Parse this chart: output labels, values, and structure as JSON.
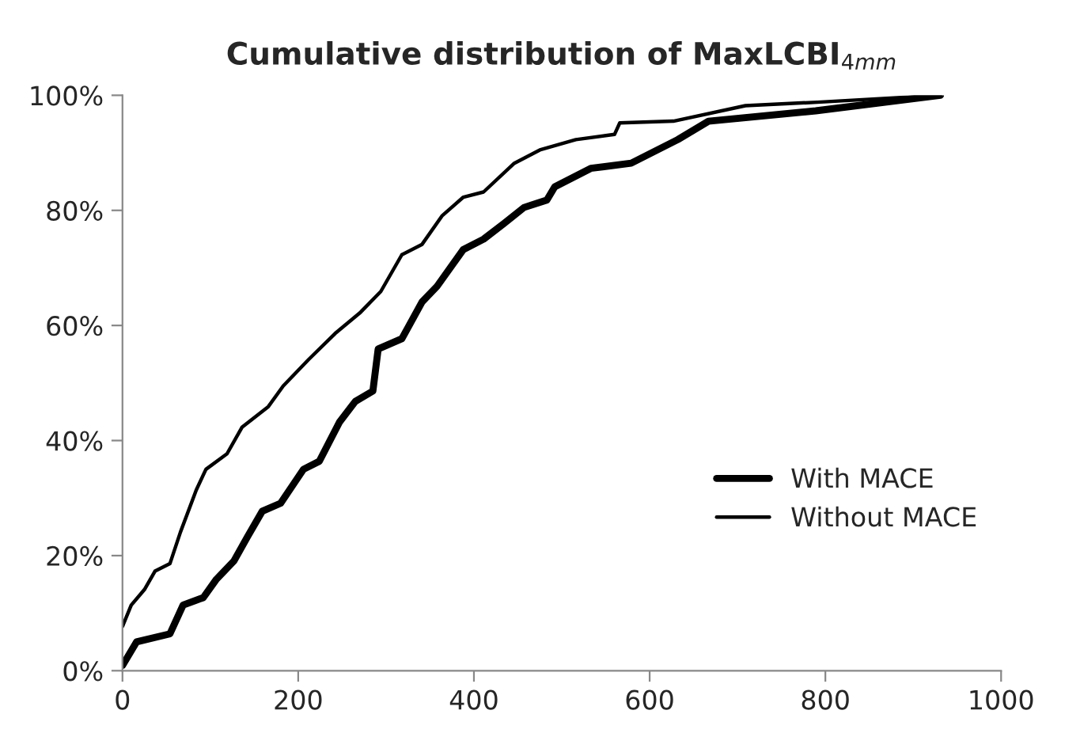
{
  "chart_data": {
    "type": "line",
    "title": "Cumulative distribution of MaxLCBI$_{4mm}$",
    "xlim": [
      0,
      1000
    ],
    "xticks": [
      0,
      200,
      400,
      600,
      800,
      1000
    ],
    "ylim": [
      0,
      100
    ],
    "yticks": [
      {
        "value": 0,
        "label": "0%"
      },
      {
        "value": 20,
        "label": "20%"
      },
      {
        "value": 40,
        "label": "40%"
      },
      {
        "value": 60,
        "label": "60%"
      },
      {
        "value": 80,
        "label": "80%"
      },
      {
        "value": 100,
        "label": "100%"
      }
    ],
    "grid": false,
    "legend": "bottom right",
    "marker": "none",
    "line_style": "solid",
    "series": [
      {
        "name": "With MACE",
        "color": "#000000",
        "x": [
          0,
          16,
          54,
          69,
          92,
          107,
          127,
          142,
          159,
          180,
          206,
          224,
          247,
          265,
          285,
          291,
          318,
          341,
          358,
          388,
          411,
          434,
          457,
          483,
          492,
          533,
          579,
          632,
          667,
          789,
          931
        ],
        "values": [
          0.9,
          5,
          6.4,
          11.4,
          12.7,
          15.9,
          19.1,
          23.2,
          27.7,
          29.1,
          35,
          36.4,
          43.2,
          46.8,
          48.6,
          55.9,
          57.7,
          64.1,
          66.8,
          73.2,
          75,
          77.7,
          80.5,
          81.8,
          84.1,
          87.3,
          88.2,
          92.3,
          95.5,
          97.3,
          100
        ]
      },
      {
        "name": "Without MACE",
        "color": "#000000",
        "x": [
          0,
          10,
          25,
          37,
          54,
          66,
          84,
          95,
          119,
          136,
          166,
          183,
          212,
          242,
          271,
          294,
          318,
          341,
          364,
          388,
          411,
          446,
          475,
          516,
          560,
          566,
          627,
          709,
          791,
          931
        ],
        "values": [
          7.7,
          11.4,
          14.1,
          17.3,
          18.6,
          24.1,
          31.4,
          35,
          37.7,
          42.3,
          45.9,
          49.5,
          54.1,
          58.6,
          62.3,
          65.9,
          72.3,
          74.1,
          79.1,
          82.3,
          83.2,
          88.2,
          90.5,
          92.3,
          93.2,
          95.2,
          95.5,
          98.2,
          98.8,
          100
        ]
      }
    ]
  }
}
